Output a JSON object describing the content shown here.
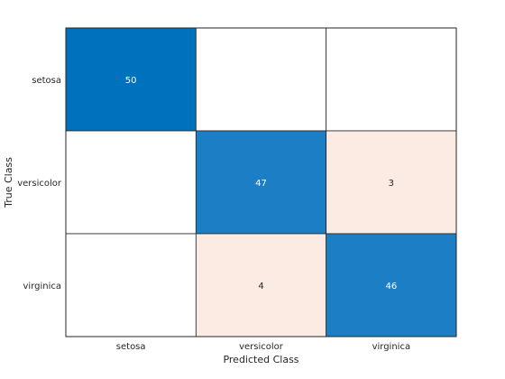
{
  "chart_data": {
    "type": "heatmap",
    "title": "",
    "xlabel": "Predicted Class",
    "ylabel": "True Class",
    "classes": [
      "setosa",
      "versicolor",
      "virginica"
    ],
    "matrix": [
      [
        50,
        0,
        0
      ],
      [
        0,
        47,
        3
      ],
      [
        0,
        4,
        46
      ]
    ],
    "show_zero_cells": false,
    "grid": false,
    "colors": {
      "diagonal_high": "#0072bd",
      "diagonal_lower": "#1c7ec4",
      "off_diagonal": "#fbebe3",
      "empty": "#ffffff",
      "text_dark_bg": "#ffffff",
      "text_light_bg": "#262626"
    }
  }
}
